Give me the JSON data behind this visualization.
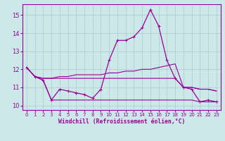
{
  "xlabel": "Windchill (Refroidissement éolien,°C)",
  "bg_color": "#cce8e8",
  "line_color": "#990099",
  "grid_color": "#aacccc",
  "x_ticks": [
    0,
    1,
    2,
    3,
    4,
    5,
    6,
    7,
    8,
    9,
    10,
    11,
    12,
    13,
    14,
    15,
    16,
    17,
    18,
    19,
    20,
    21,
    22,
    23
  ],
  "y_ticks": [
    10,
    11,
    12,
    13,
    14,
    15
  ],
  "xlim": [
    -0.5,
    23.5
  ],
  "ylim": [
    9.75,
    15.6
  ],
  "series": [
    {
      "y": [
        12.1,
        11.6,
        11.4,
        10.3,
        10.9,
        10.8,
        10.7,
        10.6,
        10.4,
        10.9,
        12.5,
        13.6,
        13.6,
        13.8,
        14.3,
        15.3,
        14.4,
        12.5,
        11.5,
        11.0,
        10.9,
        10.2,
        10.3,
        10.2
      ],
      "marker": true
    },
    {
      "y": [
        12.1,
        11.6,
        11.4,
        10.3,
        10.3,
        10.3,
        10.3,
        10.3,
        10.3,
        10.3,
        10.3,
        10.3,
        10.3,
        10.3,
        10.3,
        10.3,
        10.3,
        10.3,
        10.3,
        10.3,
        10.3,
        10.2,
        10.2,
        10.2
      ],
      "marker": false
    },
    {
      "y": [
        12.1,
        11.6,
        11.5,
        11.5,
        11.5,
        11.5,
        11.5,
        11.5,
        11.5,
        11.5,
        11.5,
        11.5,
        11.5,
        11.5,
        11.5,
        11.5,
        11.5,
        11.5,
        11.5,
        11.0,
        11.0,
        10.9,
        10.9,
        10.8
      ],
      "marker": false
    },
    {
      "y": [
        12.1,
        11.6,
        11.5,
        11.5,
        11.6,
        11.6,
        11.7,
        11.7,
        11.7,
        11.7,
        11.8,
        11.8,
        11.9,
        11.9,
        12.0,
        12.0,
        12.1,
        12.2,
        12.3,
        11.0,
        11.0,
        10.9,
        10.9,
        10.8
      ],
      "marker": false
    }
  ]
}
